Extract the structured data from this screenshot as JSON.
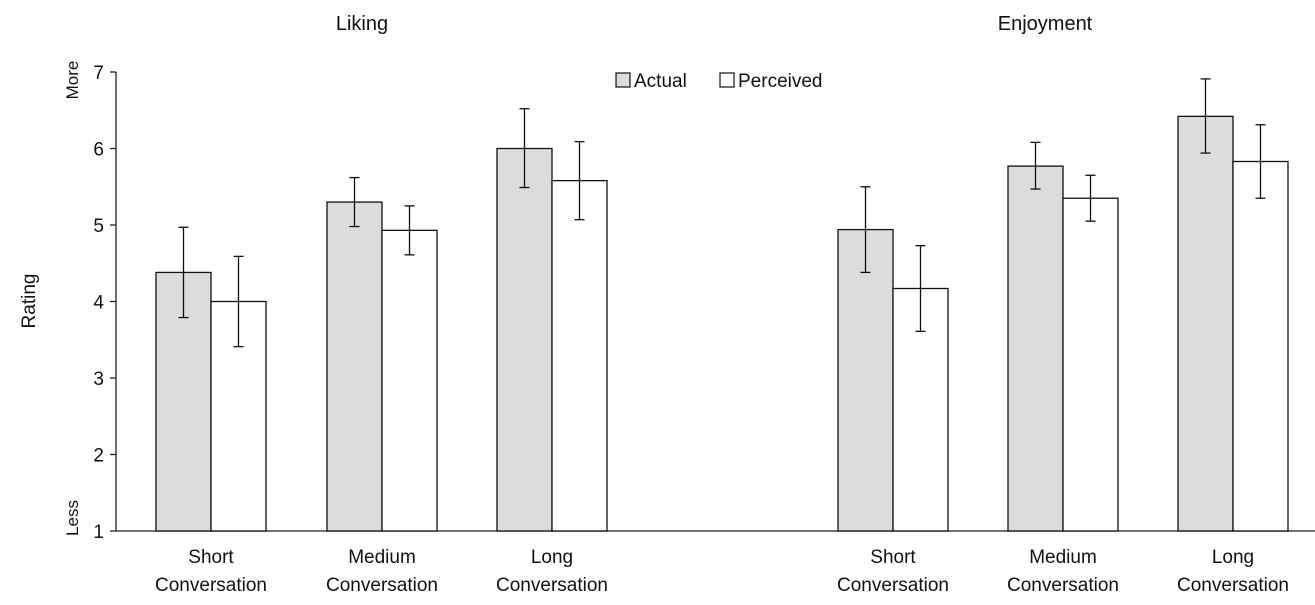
{
  "chart_data": {
    "type": "bar",
    "ylabel": "Rating",
    "y_anchor_top": "More",
    "y_anchor_bottom": "Less",
    "ylim": [
      1,
      7
    ],
    "yticks": [
      "1",
      "2",
      "3",
      "4",
      "5",
      "6",
      "7"
    ],
    "legend": {
      "placement": "top-center",
      "entries": [
        {
          "name": "Actual",
          "color": "#dcdcdc"
        },
        {
          "name": "Perceived",
          "color": "#ffffff"
        }
      ]
    },
    "panels": [
      {
        "title": "Liking",
        "categories": [
          [
            "Short",
            "Conversation"
          ],
          [
            "Medium",
            "Conversation"
          ],
          [
            "Long",
            "Conversation"
          ]
        ],
        "series": [
          {
            "name": "Actual",
            "values": [
              4.38,
              5.3,
              6.0
            ],
            "err_low": [
              3.79,
              4.98,
              5.49
            ],
            "err_high": [
              4.97,
              5.62,
              6.52
            ]
          },
          {
            "name": "Perceived",
            "values": [
              4.0,
              4.93,
              5.58
            ],
            "err_low": [
              3.41,
              4.61,
              5.07
            ],
            "err_high": [
              4.59,
              5.25,
              6.09
            ]
          }
        ]
      },
      {
        "title": "Enjoyment",
        "categories": [
          [
            "Short",
            "Conversation"
          ],
          [
            "Medium",
            "Conversation"
          ],
          [
            "Long",
            "Conversation"
          ]
        ],
        "series": [
          {
            "name": "Actual",
            "values": [
              4.94,
              5.77,
              6.42
            ],
            "err_low": [
              4.38,
              5.47,
              5.94
            ],
            "err_high": [
              5.5,
              6.08,
              6.91
            ]
          },
          {
            "name": "Perceived",
            "values": [
              4.17,
              5.35,
              5.83
            ],
            "err_low": [
              3.61,
              5.05,
              5.35
            ],
            "err_high": [
              4.73,
              5.65,
              6.31
            ]
          }
        ]
      }
    ]
  }
}
